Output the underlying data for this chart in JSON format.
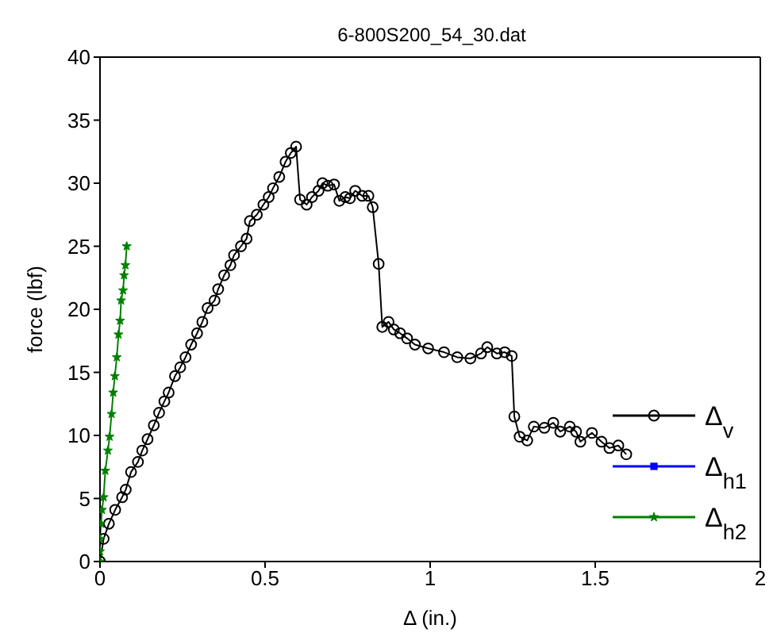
{
  "chart_data": {
    "type": "line",
    "title": "6-800S200_54_30.dat",
    "xlabel": "Δ (in.)",
    "ylabel": "force (lbf)",
    "xlim": [
      0,
      2
    ],
    "xticks": [
      0,
      0.5,
      1,
      1.5,
      2
    ],
    "ylim": [
      0,
      40
    ],
    "yticks": [
      0,
      5,
      10,
      15,
      20,
      25,
      30,
      35,
      40
    ],
    "legend": "right",
    "line_style": "solid",
    "series": [
      {
        "name": "Δ$_{v}$",
        "color": "#000000",
        "marker": "circle",
        "x": [
          0,
          0.011,
          0.027,
          0.046,
          0.067,
          0.078,
          0.094,
          0.115,
          0.128,
          0.144,
          0.163,
          0.179,
          0.195,
          0.208,
          0.227,
          0.243,
          0.259,
          0.276,
          0.294,
          0.31,
          0.326,
          0.347,
          0.358,
          0.376,
          0.395,
          0.406,
          0.427,
          0.444,
          0.454,
          0.475,
          0.495,
          0.511,
          0.524,
          0.543,
          0.562,
          0.578,
          0.594,
          0.606,
          0.626,
          0.642,
          0.662,
          0.674,
          0.69,
          0.709,
          0.725,
          0.743,
          0.757,
          0.773,
          0.794,
          0.813,
          0.826,
          0.844,
          0.855,
          0.874,
          0.89,
          0.909,
          0.93,
          0.954,
          0.994,
          1.042,
          1.082,
          1.122,
          1.154,
          1.173,
          1.202,
          1.226,
          1.247,
          1.255,
          1.271,
          1.294,
          1.314,
          1.346,
          1.373,
          1.394,
          1.423,
          1.442,
          1.455,
          1.49,
          1.519,
          1.543,
          1.57,
          1.594
        ],
        "values": [
          0,
          1.8,
          3.0,
          4.1,
          5.1,
          5.7,
          7.1,
          7.9,
          8.8,
          9.7,
          10.8,
          11.8,
          12.7,
          13.4,
          14.7,
          15.4,
          16.2,
          17.2,
          18.1,
          19.0,
          20.1,
          20.7,
          21.6,
          22.7,
          23.5,
          24.3,
          25.0,
          25.6,
          27.0,
          27.5,
          28.3,
          28.9,
          29.6,
          30.5,
          31.7,
          32.4,
          32.9,
          28.7,
          28.3,
          28.9,
          29.4,
          30.0,
          29.8,
          29.9,
          28.6,
          28.9,
          28.8,
          29.4,
          29.0,
          29.0,
          28.1,
          23.6,
          18.6,
          19.0,
          18.4,
          18.1,
          17.7,
          17.2,
          16.9,
          16.6,
          16.2,
          16.1,
          16.5,
          17.0,
          16.5,
          16.6,
          16.3,
          11.5,
          9.9,
          9.6,
          10.7,
          10.6,
          11.0,
          10.3,
          10.7,
          10.3,
          9.5,
          10.2,
          9.5,
          9.0,
          9.2,
          8.5
        ]
      },
      {
        "name": "Δ$_{h1}$",
        "color": "#0000ff",
        "marker": "square"
      },
      {
        "name": "Δ$_{h2}$",
        "color": "#008000",
        "marker": "star",
        "x": [
          0,
          0,
          0,
          0.003,
          0.006,
          0.011,
          0.016,
          0.024,
          0.029,
          0.035,
          0.04,
          0.045,
          0.051,
          0.056,
          0.061,
          0.064,
          0.07,
          0.073,
          0.077,
          0.081
        ],
        "values": [
          0,
          0.8,
          1.8,
          3.0,
          4.1,
          5.1,
          7.2,
          8.8,
          9.9,
          11.7,
          13.4,
          14.7,
          16.2,
          18.0,
          19.1,
          20.7,
          21.5,
          22.7,
          23.5,
          25.0
        ]
      }
    ]
  }
}
